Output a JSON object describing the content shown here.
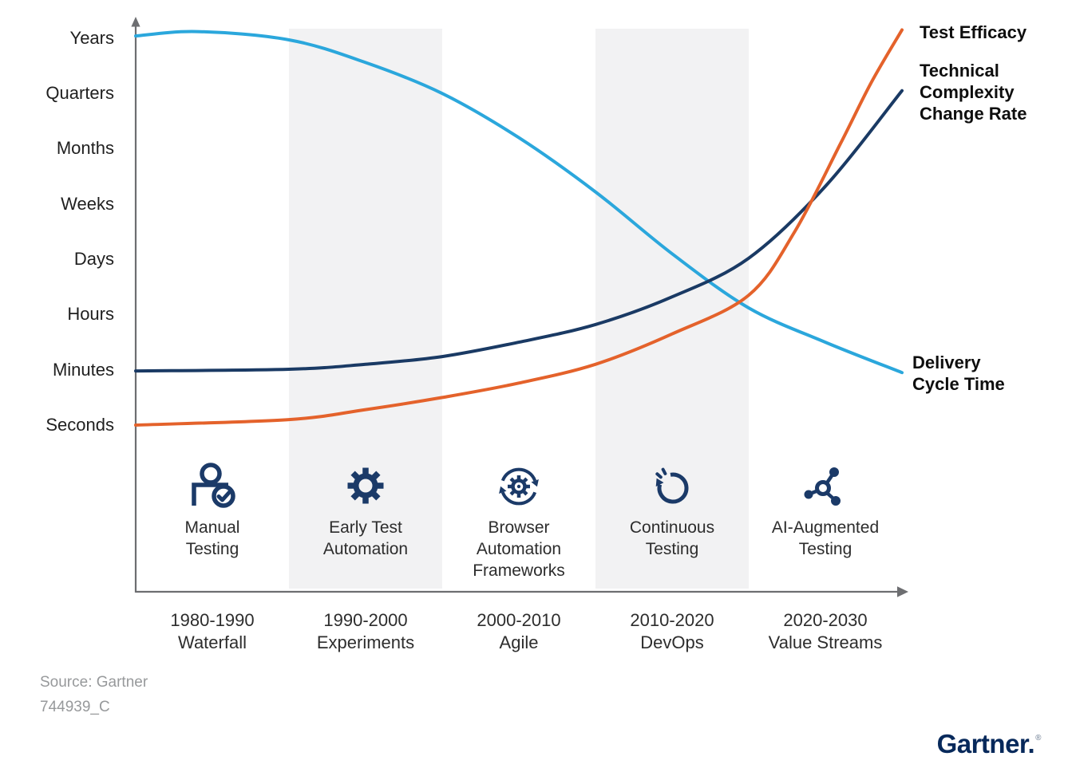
{
  "axis": {
    "y": {
      "labels": [
        "Years",
        "Quarters",
        "Months",
        "Weeks",
        "Days",
        "Hours",
        "Minutes",
        "Seconds"
      ]
    },
    "x": {
      "eras": [
        {
          "period": "1980-1990",
          "methodology": "Waterfall",
          "practice": "Manual\nTesting",
          "icon": "person-check-icon",
          "highlighted": false
        },
        {
          "period": "1990-2000",
          "methodology": "Experiments",
          "practice": "Early Test\nAutomation",
          "icon": "gear-icon",
          "highlighted": true
        },
        {
          "period": "2000-2010",
          "methodology": "Agile",
          "practice": "Browser\nAutomation\nFrameworks",
          "icon": "gear-sync-icon",
          "highlighted": false
        },
        {
          "period": "2010-2020",
          "methodology": "DevOps",
          "practice": "Continuous\nTesting",
          "icon": "refresh-arrow-icon",
          "highlighted": true
        },
        {
          "period": "2020-2030",
          "methodology": "Value Streams",
          "practice": "AI-Augmented\nTesting",
          "icon": "network-nodes-icon",
          "highlighted": false
        }
      ]
    }
  },
  "legend": {
    "test_efficacy": "Test Efficacy",
    "technical_complexity": "Technical\nComplexity\nChange Rate",
    "delivery_cycle": "Delivery\nCycle Time"
  },
  "chart_data": {
    "type": "line",
    "title": "",
    "xlabel": "",
    "ylabel": "",
    "x_range": [
      1980,
      2030
    ],
    "x_categories": [
      "1980-1990 Waterfall",
      "1990-2000 Experiments",
      "2000-2010 Agile",
      "2010-2020 DevOps",
      "2020-2030 Value Streams"
    ],
    "y_categories_bottom_to_top": [
      "Seconds",
      "Minutes",
      "Hours",
      "Days",
      "Weeks",
      "Months",
      "Quarters",
      "Years"
    ],
    "y_scale_note": "level 1 = Seconds ... level 8 = Years",
    "grid": false,
    "legend_position": "right",
    "highlighted_bands": [
      "1990-2000",
      "2010-2020"
    ],
    "series": [
      {
        "name": "Delivery Cycle Time",
        "color": "#2BA7DC",
        "points": [
          [
            1980,
            8.04
          ],
          [
            1984,
            8.12
          ],
          [
            1990,
            7.97
          ],
          [
            1995,
            7.56
          ],
          [
            2000,
            7.0
          ],
          [
            2005,
            6.2
          ],
          [
            2010,
            5.22
          ],
          [
            2015,
            4.1
          ],
          [
            2020,
            3.12
          ],
          [
            2025,
            2.5
          ],
          [
            2030,
            1.95
          ]
        ]
      },
      {
        "name": "Technical Complexity Change Rate",
        "color": "#1A3A64",
        "points": [
          [
            1980,
            1.98
          ],
          [
            1990,
            2.01
          ],
          [
            1995,
            2.1
          ],
          [
            2000,
            2.24
          ],
          [
            2005,
            2.5
          ],
          [
            2010,
            2.82
          ],
          [
            2015,
            3.32
          ],
          [
            2020,
            4.02
          ],
          [
            2025,
            5.32
          ],
          [
            2030,
            7.05
          ]
        ]
      },
      {
        "name": "Test Efficacy",
        "color": "#E4622B",
        "points": [
          [
            1980,
            1.0
          ],
          [
            1990,
            1.1
          ],
          [
            1995,
            1.28
          ],
          [
            2000,
            1.5
          ],
          [
            2005,
            1.76
          ],
          [
            2010,
            2.1
          ],
          [
            2015,
            2.65
          ],
          [
            2020,
            3.35
          ],
          [
            2023,
            4.5
          ],
          [
            2026,
            6.1
          ],
          [
            2028,
            7.2
          ],
          [
            2030,
            8.15
          ]
        ]
      }
    ]
  },
  "footer": {
    "source": "Source: Gartner",
    "doc_id": "744939_C",
    "logo": "Gartner.",
    "registered_mark": "®"
  },
  "colors": {
    "band": "#F2F2F3",
    "axis": "#6D6E71",
    "icon_navy": "#1B3A68",
    "light_blue": "#2BA7DC",
    "navy": "#1A3A64",
    "orange": "#E4622B",
    "logo_navy": "#07295B"
  }
}
